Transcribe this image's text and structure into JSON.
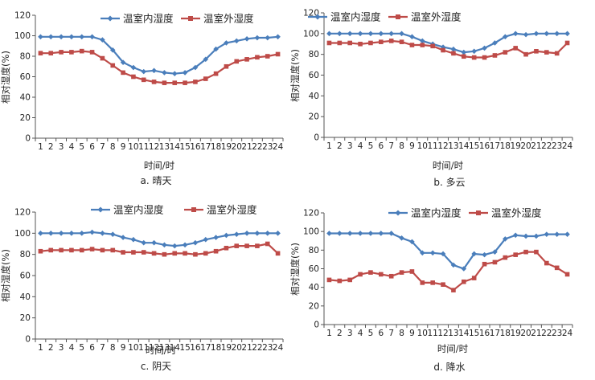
{
  "colors": {
    "inside": "#4a7ebb",
    "outside": "#be4b48",
    "axis": "#555555"
  },
  "legend": {
    "inside": "温室内湿度",
    "outside": "温室外湿度"
  },
  "chart_data": [
    {
      "type": "line",
      "caption": "a. 晴天",
      "xlabel": "时间/时",
      "ylabel": "相对湿度(%)",
      "ylim": [
        0,
        120
      ],
      "yticks": [
        0,
        20,
        40,
        60,
        80,
        100,
        120
      ],
      "x": [
        1,
        2,
        3,
        4,
        5,
        6,
        7,
        8,
        9,
        10,
        11,
        12,
        13,
        14,
        15,
        16,
        17,
        18,
        19,
        20,
        21,
        22,
        23,
        24
      ],
      "series": [
        {
          "name": "温室内湿度",
          "marker": "diamond",
          "values": [
            99,
            99,
            99,
            99,
            99,
            99,
            96,
            86,
            74,
            69,
            65,
            66,
            64,
            63,
            64,
            69,
            77,
            87,
            93,
            95,
            97,
            98,
            98,
            99
          ]
        },
        {
          "name": "温室外湿度",
          "marker": "square",
          "values": [
            83,
            83,
            84,
            84,
            85,
            84,
            78,
            71,
            64,
            60,
            57,
            55,
            54,
            54,
            54,
            55,
            58,
            63,
            70,
            75,
            77,
            79,
            80,
            82
          ]
        }
      ],
      "legend_position": "top-right",
      "grid": false
    },
    {
      "type": "line",
      "caption": "b. 多云",
      "xlabel": "时间/时",
      "ylabel": "相对湿度(%)",
      "ylim": [
        0,
        120
      ],
      "yticks": [
        0,
        20,
        40,
        60,
        80,
        100,
        120
      ],
      "x": [
        1,
        2,
        3,
        4,
        5,
        6,
        7,
        8,
        9,
        10,
        11,
        12,
        13,
        14,
        15,
        16,
        17,
        18,
        19,
        20,
        21,
        22,
        23,
        24
      ],
      "series": [
        {
          "name": "温室内湿度",
          "marker": "diamond",
          "values": [
            100,
            100,
            100,
            100,
            100,
            100,
            100,
            100,
            97,
            93,
            90,
            87,
            85,
            82,
            83,
            86,
            91,
            97,
            100,
            99,
            100,
            100,
            100,
            100
          ]
        },
        {
          "name": "温室外湿度",
          "marker": "square",
          "values": [
            91,
            91,
            91,
            90,
            91,
            92,
            93,
            92,
            89,
            89,
            88,
            84,
            81,
            78,
            77,
            77,
            79,
            82,
            86,
            80,
            83,
            82,
            81,
            91
          ]
        }
      ],
      "legend_position": "top-right",
      "grid": false
    },
    {
      "type": "line",
      "caption": "c. 阴天",
      "xlabel": "时间/时",
      "ylabel": "相对湿度(%)",
      "ylim": [
        0,
        120
      ],
      "yticks": [
        0,
        20,
        40,
        60,
        80,
        100,
        120
      ],
      "x": [
        1,
        2,
        3,
        4,
        5,
        6,
        7,
        8,
        9,
        10,
        11,
        12,
        13,
        14,
        15,
        16,
        17,
        18,
        19,
        20,
        21,
        22,
        23,
        24
      ],
      "series": [
        {
          "name": "温室内湿度",
          "marker": "diamond",
          "values": [
            100,
            100,
            100,
            100,
            100,
            101,
            100,
            99,
            96,
            94,
            91,
            91,
            89,
            88,
            89,
            91,
            94,
            96,
            98,
            99,
            100,
            100,
            100,
            100
          ]
        },
        {
          "name": "温室外湿度",
          "marker": "square",
          "values": [
            83,
            84,
            84,
            84,
            84,
            85,
            84,
            84,
            82,
            82,
            82,
            81,
            80,
            81,
            81,
            80,
            81,
            83,
            86,
            88,
            88,
            88,
            90,
            81
          ]
        }
      ],
      "legend_position": "top-right",
      "grid": false
    },
    {
      "type": "line",
      "caption": "d. 降水",
      "xlabel": "时间/时",
      "ylabel": "相对湿度(%)",
      "ylim": [
        0,
        120
      ],
      "yticks": [
        0,
        20,
        40,
        60,
        80,
        100,
        120
      ],
      "x": [
        1,
        2,
        3,
        4,
        5,
        6,
        7,
        8,
        9,
        10,
        11,
        12,
        13,
        14,
        15,
        16,
        17,
        18,
        19,
        20,
        21,
        22,
        23,
        24
      ],
      "series": [
        {
          "name": "温室内湿度",
          "marker": "diamond",
          "values": [
            98,
            98,
            98,
            98,
            98,
            98,
            98,
            93,
            89,
            77,
            77,
            76,
            64,
            60,
            76,
            75,
            78,
            92,
            96,
            95,
            95,
            97,
            97,
            97
          ]
        },
        {
          "name": "温室外湿度",
          "marker": "square",
          "values": [
            48,
            47,
            48,
            54,
            56,
            54,
            52,
            56,
            57,
            45,
            45,
            43,
            37,
            46,
            50,
            65,
            67,
            72,
            75,
            78,
            78,
            66,
            61,
            54
          ]
        }
      ],
      "legend_position": "top-left",
      "grid": false
    }
  ]
}
